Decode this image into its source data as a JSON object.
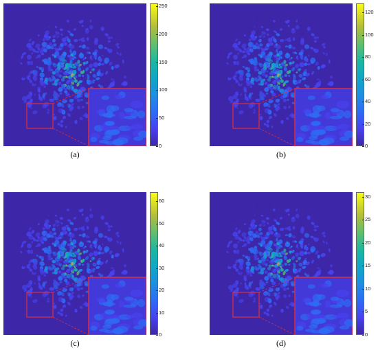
{
  "panels": [
    {
      "id": "a",
      "caption": "(a)",
      "colorbar": {
        "max": 255,
        "ticks": [
          "250",
          "200",
          "150",
          "100",
          "50",
          "0"
        ],
        "tick_values": [
          250,
          200,
          150,
          100,
          50,
          0
        ]
      }
    },
    {
      "id": "b",
      "caption": "(b)",
      "colorbar": {
        "max": 128,
        "ticks": [
          "120",
          "100",
          "80",
          "60",
          "40",
          "20",
          "0"
        ],
        "tick_values": [
          120,
          100,
          80,
          60,
          40,
          20,
          0
        ]
      }
    },
    {
      "id": "c",
      "caption": "(c)",
      "colorbar": {
        "max": 64,
        "ticks": [
          "60",
          "50",
          "40",
          "30",
          "20",
          "10",
          "0"
        ],
        "tick_values": [
          60,
          50,
          40,
          30,
          20,
          10,
          0
        ]
      }
    },
    {
      "id": "d",
      "caption": "(d)",
      "colorbar": {
        "max": 31,
        "ticks": [
          "30",
          "25",
          "20",
          "15",
          "10",
          "5",
          "0"
        ],
        "tick_values": [
          30,
          25,
          20,
          15,
          10,
          5,
          0
        ]
      }
    }
  ],
  "colors": {
    "background_map": "#3e26a8",
    "inset_border": "#e0303a",
    "colormap": [
      "#3e26a8",
      "#4743f0",
      "#2d6cf5",
      "#1e8fe0",
      "#10a8c5",
      "#1eb79f",
      "#62bf6d",
      "#b3be3b",
      "#f9fb15"
    ]
  }
}
